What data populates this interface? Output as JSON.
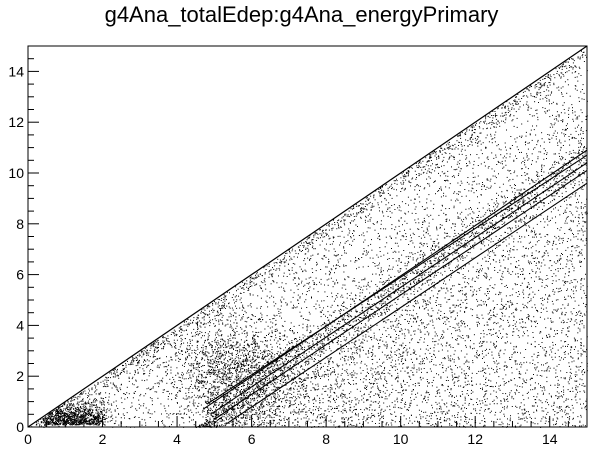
{
  "chart_data": {
    "type": "scatter",
    "title": "g4Ana_totalEdep:g4Ana_energyPrimary",
    "xlabel": "",
    "ylabel": "",
    "xlim": [
      0,
      15
    ],
    "ylim": [
      0,
      15
    ],
    "x_major_ticks": [
      0,
      2,
      4,
      6,
      8,
      10,
      12,
      14
    ],
    "y_major_ticks": [
      0,
      2,
      4,
      6,
      8,
      10,
      12,
      14
    ],
    "x_minor_step": 0.5,
    "y_minor_step": 0.5,
    "grid": false,
    "legend": "none",
    "marker": "1px dot",
    "color": "#000000",
    "regions": [
      {
        "name": "full-deposition-diagonal",
        "relation": "y = x",
        "x_range": [
          0,
          15
        ],
        "density": "high"
      },
      {
        "name": "upper-triangle-scatter",
        "relation": "y < x",
        "x_range": [
          0,
          15
        ],
        "density": "medium"
      },
      {
        "name": "low-energy-cluster",
        "center": [
          1,
          0.5
        ],
        "density": "very-high"
      },
      {
        "name": "mid-energy-cloud",
        "center": [
          5.5,
          2.2
        ],
        "density": "high"
      },
      {
        "name": "lower-region-scatter",
        "relation": "y < x - 4.5",
        "x_range": [
          4.5,
          15
        ],
        "density": "low"
      }
    ],
    "bands": [
      {
        "name": "band-1",
        "x": [
          4.7,
          15
        ],
        "y": [
          0.7,
          10.9
        ]
      },
      {
        "name": "band-2",
        "x": [
          4.8,
          15
        ],
        "y": [
          0.9,
          10.7
        ]
      },
      {
        "name": "band-3",
        "x": [
          4.9,
          15
        ],
        "y": [
          0.5,
          10.4
        ]
      },
      {
        "name": "band-4",
        "x": [
          5.0,
          15
        ],
        "y": [
          0.3,
          10.1
        ]
      },
      {
        "name": "band-5",
        "x": [
          5.3,
          15
        ],
        "y": [
          0.1,
          9.6
        ]
      }
    ]
  }
}
